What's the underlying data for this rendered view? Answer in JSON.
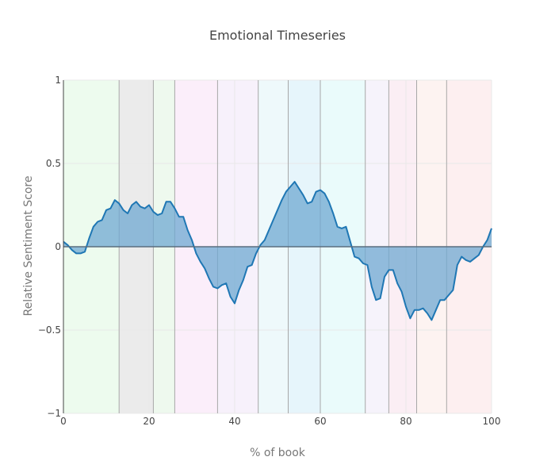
{
  "chart_data": {
    "type": "area",
    "title": "Emotional Timeseries",
    "xlabel": "% of book",
    "ylabel": "Relative Sentiment Score",
    "xlim": [
      0,
      100
    ],
    "ylim": [
      -1,
      1
    ],
    "x_ticks": [
      0,
      20,
      40,
      60,
      80,
      100
    ],
    "y_ticks": [
      -1,
      -0.5,
      0,
      0.5,
      1
    ],
    "y_tick_labels": [
      "−1",
      "−0.5",
      "0",
      "0.5",
      "1"
    ],
    "grid": true,
    "colors": {
      "line": "#1f77b4",
      "fill": "#6fa8d2"
    },
    "section_boundaries": [
      13,
      21,
      26,
      36,
      45.5,
      52.5,
      60,
      70.5,
      76,
      82.5,
      89.5
    ],
    "section_bands": [
      {
        "x0": 0,
        "x1": 13,
        "color": "#edfbee"
      },
      {
        "x0": 13,
        "x1": 21,
        "color": "#ebebeb"
      },
      {
        "x0": 21,
        "x1": 26,
        "color": "#eef9ee"
      },
      {
        "x0": 26,
        "x1": 36,
        "color": "#fbeefa"
      },
      {
        "x0": 36,
        "x1": 45.5,
        "color": "#f7f1fb"
      },
      {
        "x0": 45.5,
        "x1": 52.5,
        "color": "#eef9fb"
      },
      {
        "x0": 52.5,
        "x1": 60,
        "color": "#e6f5fb"
      },
      {
        "x0": 60,
        "x1": 70.5,
        "color": "#eafbfb"
      },
      {
        "x0": 70.5,
        "x1": 76,
        "color": "#f6f3fb"
      },
      {
        "x0": 76,
        "x1": 82.5,
        "color": "#fbeef4"
      },
      {
        "x0": 82.5,
        "x1": 89.5,
        "color": "#fdf3f1"
      },
      {
        "x0": 89.5,
        "x1": 100,
        "color": "#fdeff0"
      }
    ],
    "x": [
      0,
      1,
      2,
      3,
      4,
      5,
      6,
      7,
      8,
      9,
      10,
      11,
      12,
      13,
      14,
      15,
      16,
      17,
      18,
      19,
      20,
      21,
      22,
      23,
      24,
      25,
      26,
      27,
      28,
      29,
      30,
      31,
      32,
      33,
      34,
      35,
      36,
      37,
      38,
      39,
      40,
      41,
      42,
      43,
      44,
      45,
      46,
      47,
      48,
      49,
      50,
      51,
      52,
      53,
      54,
      55,
      56,
      57,
      58,
      59,
      60,
      61,
      62,
      63,
      64,
      65,
      66,
      67,
      68,
      69,
      70,
      71,
      72,
      73,
      74,
      75,
      76,
      77,
      78,
      79,
      80,
      81,
      82,
      83,
      84,
      85,
      86,
      87,
      88,
      89,
      90,
      91,
      92,
      93,
      94,
      95,
      96,
      97,
      98,
      99,
      100
    ],
    "series": [
      {
        "values": [
          0.03,
          0.01,
          -0.02,
          -0.04,
          -0.04,
          -0.03,
          0.05,
          0.12,
          0.15,
          0.16,
          0.22,
          0.23,
          0.28,
          0.26,
          0.22,
          0.2,
          0.25,
          0.27,
          0.24,
          0.23,
          0.25,
          0.21,
          0.19,
          0.2,
          0.27,
          0.27,
          0.23,
          0.18,
          0.18,
          0.1,
          0.04,
          -0.04,
          -0.09,
          -0.13,
          -0.19,
          -0.24,
          -0.25,
          -0.23,
          -0.22,
          -0.3,
          -0.34,
          -0.26,
          -0.2,
          -0.12,
          -0.11,
          -0.04,
          0.01,
          0.04,
          0.1,
          0.16,
          0.22,
          0.28,
          0.33,
          0.36,
          0.39,
          0.35,
          0.31,
          0.26,
          0.27,
          0.33,
          0.34,
          0.32,
          0.27,
          0.2,
          0.12,
          0.11,
          0.12,
          0.03,
          -0.06,
          -0.07,
          -0.1,
          -0.11,
          -0.24,
          -0.32,
          -0.31,
          -0.18,
          -0.14,
          -0.14,
          -0.22,
          -0.27,
          -0.36,
          -0.43,
          -0.38,
          -0.38,
          -0.37,
          -0.4,
          -0.44,
          -0.38,
          -0.32,
          -0.32,
          -0.29,
          -0.26,
          -0.11,
          -0.06,
          -0.08,
          -0.09,
          -0.07,
          -0.05,
          0.0,
          0.04,
          0.11
        ]
      }
    ]
  }
}
